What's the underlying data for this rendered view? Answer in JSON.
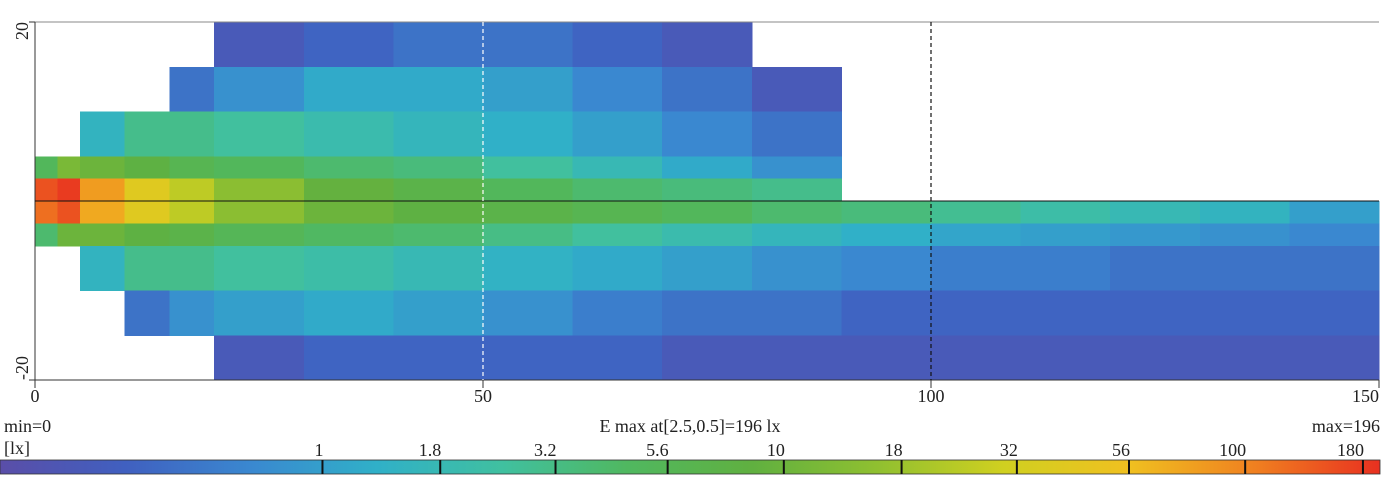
{
  "chart_data": {
    "type": "heatmap",
    "xlim": [
      0,
      150
    ],
    "ylim": [
      -20,
      20
    ],
    "xticks": [
      0,
      50,
      100,
      150
    ],
    "yticks": [
      -20,
      20
    ],
    "grid": true,
    "x_edges": [
      0,
      2.5,
      5,
      10,
      15,
      20,
      30,
      40,
      50,
      60,
      70,
      80,
      90,
      100,
      110,
      120,
      130,
      140,
      150
    ],
    "y_edges": [
      20,
      15,
      10,
      5,
      2.5,
      0,
      -2.5,
      -5,
      -10,
      -15,
      -20
    ],
    "z": [
      [
        null,
        null,
        null,
        null,
        null,
        0.3,
        0.4,
        0.5,
        0.5,
        0.4,
        0.3,
        null,
        null,
        null,
        null,
        null,
        null,
        null
      ],
      [
        null,
        null,
        null,
        null,
        0.5,
        0.8,
        1.2,
        1.2,
        1.0,
        0.7,
        0.5,
        0.3,
        null,
        null,
        null,
        null,
        null,
        null
      ],
      [
        null,
        null,
        1.5,
        3,
        3,
        2.5,
        2,
        1.6,
        1.3,
        1.0,
        0.7,
        0.5,
        null,
        null,
        null,
        null,
        null,
        null
      ],
      [
        5,
        12,
        10,
        8,
        6,
        5,
        4,
        3.5,
        2.5,
        1.8,
        1.2,
        0.8,
        null,
        null,
        null,
        null,
        null,
        null
      ],
      [
        150,
        180,
        80,
        40,
        25,
        15,
        9,
        7,
        5,
        4,
        3.5,
        3,
        null,
        null,
        null,
        null,
        null,
        null
      ],
      [
        120,
        150,
        70,
        40,
        25,
        15,
        10,
        8,
        7,
        6,
        5,
        4,
        3.5,
        2.8,
        2.2,
        1.8,
        1.5,
        1.0
      ],
      [
        4,
        10,
        10,
        8,
        7,
        5.5,
        4.5,
        4,
        3.2,
        2.5,
        2,
        1.6,
        1.3,
        1.1,
        1.0,
        0.9,
        0.8,
        0.7
      ],
      [
        null,
        null,
        1.5,
        3,
        3,
        2.5,
        2.2,
        1.8,
        1.4,
        1.2,
        1.0,
        0.8,
        0.7,
        0.6,
        0.6,
        0.5,
        0.5,
        0.5
      ],
      [
        null,
        null,
        null,
        0.5,
        0.8,
        1.0,
        1.2,
        1.0,
        0.8,
        0.6,
        0.5,
        0.5,
        0.4,
        0.4,
        0.4,
        0.4,
        0.4,
        0.4
      ],
      [
        null,
        null,
        null,
        null,
        null,
        0.3,
        0.4,
        0.4,
        0.4,
        0.4,
        0.3,
        0.3,
        0.3,
        0.3,
        0.3,
        0.3,
        0.3,
        0.3
      ]
    ],
    "colorscale": [
      "#5a4ea8",
      "#4060c0",
      "#3a88d0",
      "#30b0c8",
      "#40c0a0",
      "#50b860",
      "#60b040",
      "#90c030",
      "#d0d020",
      "#f0c020",
      "#f08020",
      "#e83020"
    ],
    "colorbar_lim": [
      0.2,
      196
    ],
    "colorbar_ticks": [
      1,
      1.8,
      3.2,
      5.6,
      10,
      18,
      32,
      56,
      100,
      180
    ],
    "min_label": "min=0",
    "max_label": "max=196",
    "center_label": "E max at[2.5,0.5]=196 lx",
    "unit_label": "[lx]"
  }
}
